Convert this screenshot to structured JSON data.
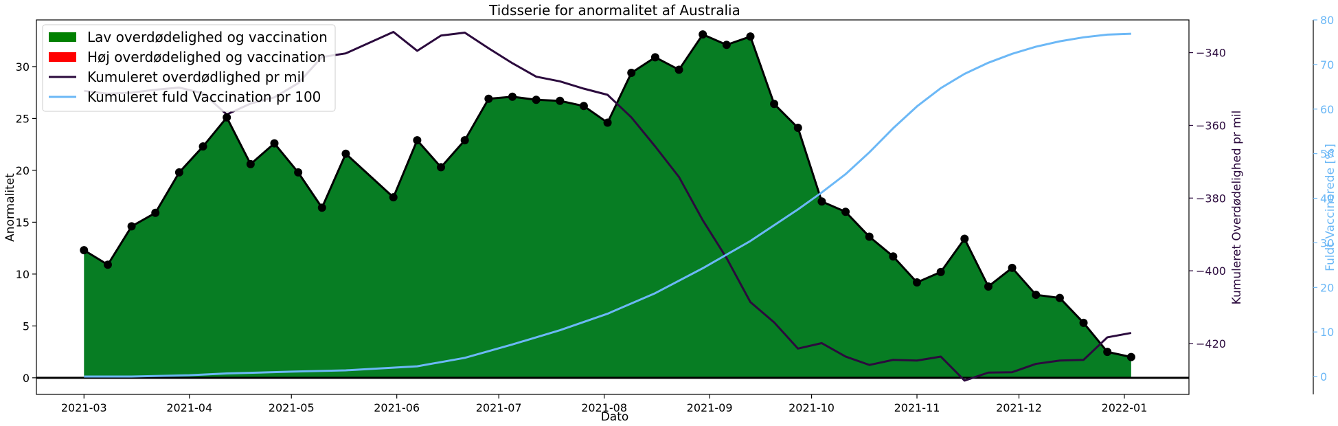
{
  "chart_data": {
    "type": "area",
    "title": "Tidsserie for anormalitet af Australia",
    "xlabel": "Dato",
    "ylabel_left": "Anormalitet",
    "ylabel_right1": "Kumuleret Overdødelighed pr mil",
    "ylabel_right2": "Fuldt Vaccinerede [%]",
    "x_range": [
      "2021-02-15",
      "2022-01-20"
    ],
    "ylim_left": [
      -1.6,
      34.5
    ],
    "ylim_right1": [
      -434,
      -331
    ],
    "ylim_right2": [
      -4,
      80
    ],
    "x_ticks": [
      "2021-03-01",
      "2021-04-01",
      "2021-05-01",
      "2021-06-01",
      "2021-07-01",
      "2021-08-01",
      "2021-09-01",
      "2021-10-01",
      "2021-11-01",
      "2021-12-01",
      "2022-01-01"
    ],
    "x_tick_labels": [
      "2021-03",
      "2021-04",
      "2021-05",
      "2021-06",
      "2021-07",
      "2021-08",
      "2021-09",
      "2021-10",
      "2021-11",
      "2021-12",
      "2022-01"
    ],
    "y_ticks_left": [
      0,
      5,
      10,
      15,
      20,
      25,
      30
    ],
    "y_ticks_right1": [
      -340,
      -360,
      -380,
      -400,
      -420
    ],
    "y_tick_labels_right1": [
      "−340",
      "−360",
      "−380",
      "−400",
      "−420"
    ],
    "y_ticks_right2": [
      0,
      10,
      20,
      30,
      40,
      50,
      60,
      70,
      80
    ],
    "legend": {
      "location": "upper-left",
      "entries": [
        {
          "label": "Lav overdødelighed og vaccination",
          "kind": "patch",
          "color": "#008000"
        },
        {
          "label": "Høj overdødelighed og vaccination",
          "kind": "patch",
          "color": "#ff0000"
        },
        {
          "label": "Kumuleret overdødlighed pr mil",
          "kind": "line",
          "color": "#2b0a3d"
        },
        {
          "label": "Kumuleret fuld Vaccination pr 100",
          "kind": "line",
          "color": "#6cb8f6"
        }
      ]
    },
    "colors": {
      "area": "#077d23",
      "anomaly_line": "#000000",
      "excess_line": "#2b0a3d",
      "vaccination_line": "#6cb8f6",
      "right1_axis": "#2b0a3d",
      "right2_axis": "#6cb8f6"
    },
    "series": [
      {
        "name": "Anormalitet",
        "axis": "left",
        "style": "area-with-markers",
        "points": [
          [
            "2021-03-01",
            12.3
          ],
          [
            "2021-03-08",
            10.9
          ],
          [
            "2021-03-15",
            14.6
          ],
          [
            "2021-03-22",
            15.9
          ],
          [
            "2021-03-29",
            19.8
          ],
          [
            "2021-04-05",
            22.3
          ],
          [
            "2021-04-12",
            25.1
          ],
          [
            "2021-04-19",
            20.6
          ],
          [
            "2021-04-26",
            22.6
          ],
          [
            "2021-05-03",
            19.8
          ],
          [
            "2021-05-10",
            16.4
          ],
          [
            "2021-05-17",
            21.6
          ],
          [
            "2021-05-31",
            17.4
          ],
          [
            "2021-06-07",
            22.9
          ],
          [
            "2021-06-14",
            20.3
          ],
          [
            "2021-06-21",
            22.9
          ],
          [
            "2021-06-28",
            26.9
          ],
          [
            "2021-07-05",
            27.1
          ],
          [
            "2021-07-12",
            26.8
          ],
          [
            "2021-07-19",
            26.7
          ],
          [
            "2021-07-26",
            26.2
          ],
          [
            "2021-08-02",
            24.6
          ],
          [
            "2021-08-09",
            29.4
          ],
          [
            "2021-08-16",
            30.9
          ],
          [
            "2021-08-23",
            29.7
          ],
          [
            "2021-08-30",
            33.1
          ],
          [
            "2021-09-06",
            32.1
          ],
          [
            "2021-09-13",
            32.9
          ],
          [
            "2021-09-20",
            26.4
          ],
          [
            "2021-09-27",
            24.1
          ],
          [
            "2021-10-04",
            17.0
          ],
          [
            "2021-10-11",
            16.0
          ],
          [
            "2021-10-18",
            13.6
          ],
          [
            "2021-10-25",
            11.7
          ],
          [
            "2021-11-01",
            9.2
          ],
          [
            "2021-11-08",
            10.2
          ],
          [
            "2021-11-15",
            13.4
          ],
          [
            "2021-11-22",
            8.8
          ],
          [
            "2021-11-29",
            10.6
          ],
          [
            "2021-12-06",
            8.0
          ],
          [
            "2021-12-13",
            7.7
          ],
          [
            "2021-12-20",
            5.3
          ],
          [
            "2021-12-27",
            2.5
          ],
          [
            "2022-01-03",
            2.0
          ]
        ]
      },
      {
        "name": "Kumuleret overdødlighed pr mil",
        "axis": "right1",
        "style": "line",
        "points": [
          [
            "2021-03-01",
            -350.5
          ],
          [
            "2021-03-08",
            -351.3
          ],
          [
            "2021-03-15",
            -351.0
          ],
          [
            "2021-03-22",
            -350.2
          ],
          [
            "2021-03-29",
            -349.6
          ],
          [
            "2021-04-05",
            -351.2
          ],
          [
            "2021-04-12",
            -357.0
          ],
          [
            "2021-04-19",
            -354.0
          ],
          [
            "2021-04-26",
            -352.3
          ],
          [
            "2021-05-03",
            -348.4
          ],
          [
            "2021-05-10",
            -341.2
          ],
          [
            "2021-05-17",
            -340.2
          ],
          [
            "2021-05-31",
            -334.3
          ],
          [
            "2021-06-07",
            -339.5
          ],
          [
            "2021-06-14",
            -335.3
          ],
          [
            "2021-06-21",
            -334.5
          ],
          [
            "2021-06-28",
            -338.8
          ],
          [
            "2021-07-05",
            -342.9
          ],
          [
            "2021-07-12",
            -346.6
          ],
          [
            "2021-07-19",
            -347.9
          ],
          [
            "2021-07-26",
            -349.9
          ],
          [
            "2021-08-02",
            -351.6
          ],
          [
            "2021-08-09",
            -357.8
          ],
          [
            "2021-08-16",
            -365.8
          ],
          [
            "2021-08-23",
            -374.2
          ],
          [
            "2021-08-30",
            -386.1
          ],
          [
            "2021-09-06",
            -396.5
          ],
          [
            "2021-09-13",
            -408.6
          ],
          [
            "2021-09-20",
            -414.2
          ],
          [
            "2021-09-27",
            -421.4
          ],
          [
            "2021-10-04",
            -419.9
          ],
          [
            "2021-10-11",
            -423.6
          ],
          [
            "2021-10-18",
            -425.9
          ],
          [
            "2021-10-25",
            -424.5
          ],
          [
            "2021-11-01",
            -424.7
          ],
          [
            "2021-11-08",
            -423.6
          ],
          [
            "2021-11-15",
            -430.2
          ],
          [
            "2021-11-22",
            -428.0
          ],
          [
            "2021-11-29",
            -427.9
          ],
          [
            "2021-12-06",
            -425.6
          ],
          [
            "2021-12-13",
            -424.7
          ],
          [
            "2021-12-20",
            -424.5
          ],
          [
            "2021-12-27",
            -418.3
          ],
          [
            "2022-01-03",
            -417.1
          ]
        ]
      },
      {
        "name": "Kumuleret fuld Vaccination pr 100",
        "axis": "right2",
        "style": "line",
        "points": [
          [
            "2021-03-01",
            0.0
          ],
          [
            "2021-03-15",
            0.0
          ],
          [
            "2021-04-01",
            0.3
          ],
          [
            "2021-04-12",
            0.7
          ],
          [
            "2021-05-01",
            1.1
          ],
          [
            "2021-05-17",
            1.4
          ],
          [
            "2021-06-07",
            2.3
          ],
          [
            "2021-06-21",
            4.2
          ],
          [
            "2021-07-05",
            7.2
          ],
          [
            "2021-07-19",
            10.4
          ],
          [
            "2021-08-02",
            14.1
          ],
          [
            "2021-08-16",
            18.7
          ],
          [
            "2021-08-30",
            24.3
          ],
          [
            "2021-09-13",
            30.4
          ],
          [
            "2021-09-27",
            37.5
          ],
          [
            "2021-10-04",
            41.3
          ],
          [
            "2021-10-11",
            45.4
          ],
          [
            "2021-10-18",
            50.3
          ],
          [
            "2021-10-25",
            55.7
          ],
          [
            "2021-11-01",
            60.6
          ],
          [
            "2021-11-08",
            64.7
          ],
          [
            "2021-11-15",
            67.9
          ],
          [
            "2021-11-22",
            70.4
          ],
          [
            "2021-11-29",
            72.4
          ],
          [
            "2021-12-06",
            74.0
          ],
          [
            "2021-12-13",
            75.2
          ],
          [
            "2021-12-20",
            76.1
          ],
          [
            "2021-12-27",
            76.7
          ],
          [
            "2022-01-03",
            76.9
          ]
        ]
      }
    ]
  }
}
